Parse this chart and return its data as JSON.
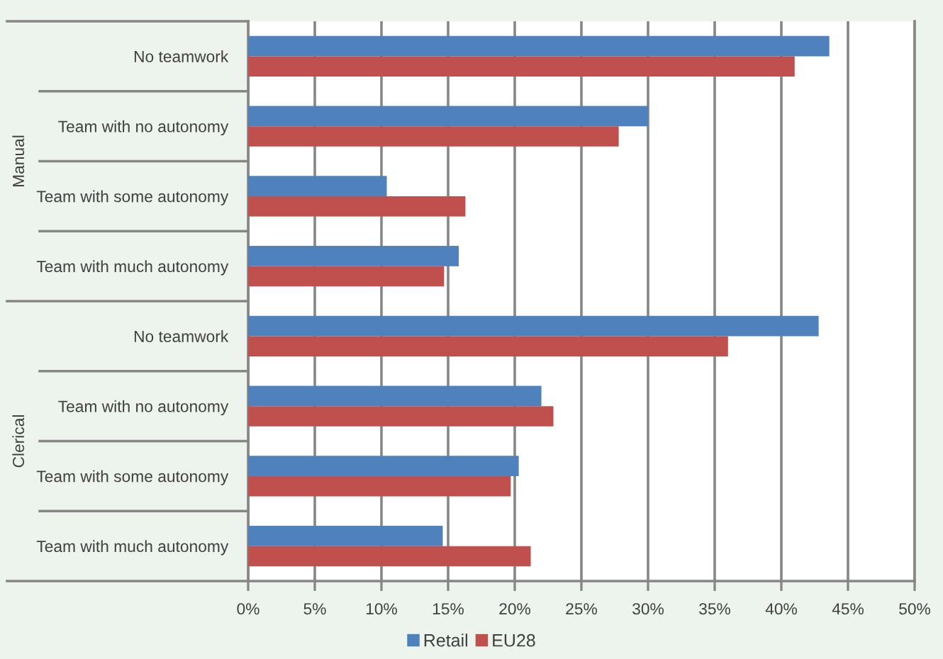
{
  "chart_data": {
    "type": "bar",
    "orientation": "horizontal",
    "categories": [
      "No teamwork",
      "Team with no autonomy",
      "Team with some autonomy",
      "Team with much autonomy",
      "No teamwork",
      "Team with no autonomy",
      "Team with some autonomy",
      "Team with much autonomy"
    ],
    "series": [
      {
        "name": "Retail",
        "color": "#4f81bd",
        "values": [
          43.6,
          30.0,
          10.4,
          15.8,
          42.8,
          22.0,
          20.3,
          14.6
        ]
      },
      {
        "name": "EU28",
        "color": "#c0504d",
        "values": [
          41.0,
          27.8,
          16.3,
          14.7,
          36.0,
          22.9,
          19.7,
          21.2
        ]
      }
    ],
    "xlim": [
      0,
      50
    ],
    "xticks": [
      {
        "value": 0,
        "label": "0%"
      },
      {
        "value": 5,
        "label": "5%"
      },
      {
        "value": 10,
        "label": "10%"
      },
      {
        "value": 15,
        "label": "15%"
      },
      {
        "value": 20,
        "label": "20%"
      },
      {
        "value": 25,
        "label": "25%"
      },
      {
        "value": 30,
        "label": "30%"
      },
      {
        "value": 35,
        "label": "35%"
      },
      {
        "value": 40,
        "label": "40%"
      },
      {
        "value": 45,
        "label": "45%"
      },
      {
        "value": 50,
        "label": "50%"
      }
    ],
    "grid": "x",
    "legend": "bottom",
    "annotations": [
      "Manual",
      "Clerical"
    ]
  }
}
